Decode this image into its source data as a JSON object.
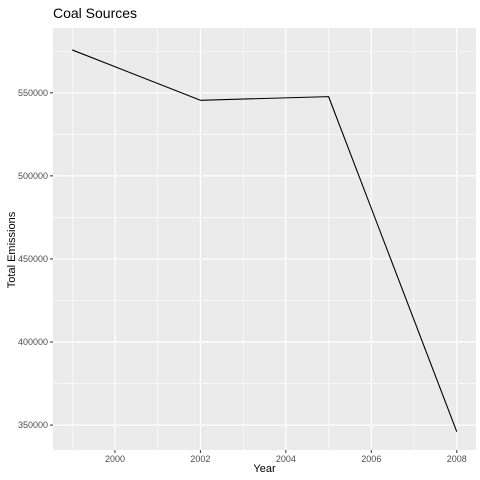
{
  "chart_data": {
    "type": "line",
    "title": "Coal Sources",
    "xlabel": "Year",
    "ylabel": "Total Emissions",
    "x": [
      1999,
      2002,
      2005,
      2008
    ],
    "series": [
      {
        "values": [
          575800,
          545500,
          547700,
          346000
        ],
        "color": "#000000"
      }
    ],
    "xlim": [
      1998.55,
      2008.45
    ],
    "ylim": [
      335000,
      589000
    ],
    "x_ticks": [
      2000,
      2002,
      2004,
      2006,
      2008
    ],
    "x_tick_labels": [
      "2000",
      "2002",
      "2004",
      "2006",
      "2008"
    ],
    "y_ticks": [
      350000,
      400000,
      450000,
      500000,
      550000
    ],
    "y_tick_labels": [
      "350000",
      "400000",
      "450000",
      "500000",
      "550000"
    ],
    "grid": true,
    "panel_color": "#ebebeb",
    "grid_color": "#ffffff"
  }
}
